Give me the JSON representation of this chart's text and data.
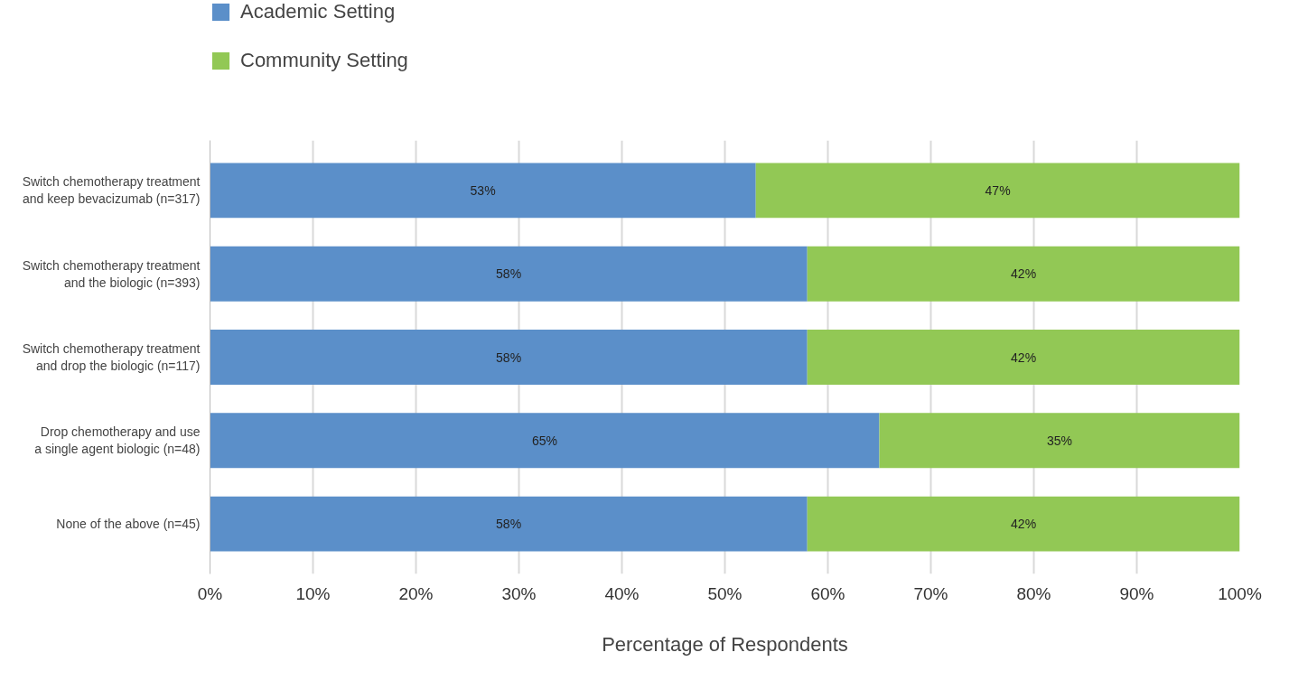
{
  "chart_data": {
    "type": "bar",
    "orientation": "horizontal",
    "stacked": true,
    "categories": [
      "Switch chemotherapy treatment\nand keep bevacizumab (n=317)",
      "Switch chemotherapy treatment\nand the biologic (n=393)",
      "Switch chemotherapy treatment\nand drop the biologic (n=117)",
      "Drop chemotherapy and use\na single agent biologic (n=48)",
      "None of the above (n=45)"
    ],
    "series": [
      {
        "name": "Academic Setting",
        "color": "#5b8fc9",
        "values": [
          53,
          58,
          58,
          65,
          58
        ],
        "value_labels": [
          "53%",
          "58%",
          "58%",
          "65%",
          "58%"
        ]
      },
      {
        "name": "Community Setting",
        "color": "#92c855",
        "values": [
          47,
          42,
          42,
          35,
          42
        ],
        "value_labels": [
          "47%",
          "42%",
          "42%",
          "35%",
          "42%"
        ]
      }
    ],
    "xlabel": "Percentage of Respondents",
    "xlim": [
      0,
      100
    ],
    "xticks": [
      {
        "value": 0,
        "label": "0%"
      },
      {
        "value": 10,
        "label": "10%"
      },
      {
        "value": 20,
        "label": "20%"
      },
      {
        "value": 30,
        "label": "30%"
      },
      {
        "value": 40,
        "label": "40%"
      },
      {
        "value": 50,
        "label": "50%"
      },
      {
        "value": 60,
        "label": "60%"
      },
      {
        "value": 70,
        "label": "70%"
      },
      {
        "value": 80,
        "label": "80%"
      },
      {
        "value": 90,
        "label": "90%"
      },
      {
        "value": 100,
        "label": "100%"
      }
    ],
    "data_labels": true,
    "grid": "x",
    "legend": "top left"
  }
}
